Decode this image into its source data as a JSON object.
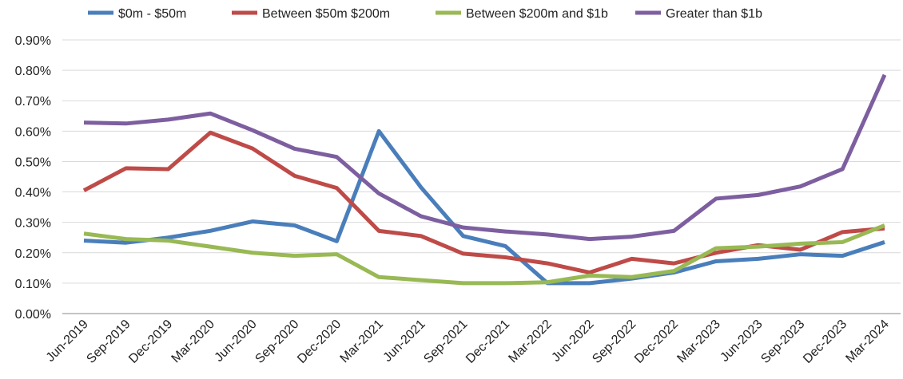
{
  "chart_data": {
    "type": "line",
    "categories": [
      "Jun-2019",
      "Sep-2019",
      "Dec-2019",
      "Mar-2020",
      "Jun-2020",
      "Sep-2020",
      "Dec-2020",
      "Mar-2021",
      "Jun-2021",
      "Sep-2021",
      "Dec-2021",
      "Mar-2022",
      "Jun-2022",
      "Sep-2022",
      "Dec-2022",
      "Mar-2023",
      "Jun-2023",
      "Sep-2023",
      "Dec-2023",
      "Mar-2024"
    ],
    "series": [
      {
        "name": "$0m - $50m",
        "color": "#4a7ebb",
        "values": [
          0.24,
          0.233,
          0.25,
          0.272,
          0.303,
          0.29,
          0.238,
          0.6,
          0.415,
          0.255,
          0.222,
          0.1,
          0.1,
          0.115,
          0.135,
          0.172,
          0.18,
          0.195,
          0.19,
          0.235
        ]
      },
      {
        "name": "Between $50m $200m",
        "color": "#be4b48",
        "values": [
          0.405,
          0.478,
          0.475,
          0.595,
          0.543,
          0.453,
          0.413,
          0.272,
          0.255,
          0.197,
          0.185,
          0.165,
          0.135,
          0.18,
          0.165,
          0.2,
          0.225,
          0.21,
          0.268,
          0.28
        ]
      },
      {
        "name": "Between $200m and $1b",
        "color": "#98b954",
        "values": [
          0.263,
          0.245,
          0.24,
          0.22,
          0.2,
          0.19,
          0.195,
          0.12,
          0.11,
          0.1,
          0.1,
          0.103,
          0.125,
          0.12,
          0.14,
          0.215,
          0.22,
          0.23,
          0.235,
          0.29
        ]
      },
      {
        "name": "Greater than $1b",
        "color": "#7d5fa0",
        "values": [
          0.628,
          0.625,
          0.638,
          0.658,
          0.603,
          0.542,
          0.515,
          0.395,
          0.32,
          0.283,
          0.27,
          0.26,
          0.245,
          0.253,
          0.272,
          0.378,
          0.39,
          0.418,
          0.475,
          0.785
        ]
      }
    ],
    "ylim": [
      0,
      0.9
    ],
    "yticks": [
      {
        "value": 0,
        "label": "0.00%"
      },
      {
        "value": 0.1,
        "label": "0.10%"
      },
      {
        "value": 0.2,
        "label": "0.20%"
      },
      {
        "value": 0.3,
        "label": "0.30%"
      },
      {
        "value": 0.4,
        "label": "0.40%"
      },
      {
        "value": 0.5,
        "label": "0.50%"
      },
      {
        "value": 0.6,
        "label": "0.60%"
      },
      {
        "value": 0.7,
        "label": "0.70%"
      },
      {
        "value": 0.8,
        "label": "0.80%"
      },
      {
        "value": 0.9,
        "label": "0.90%"
      }
    ],
    "grid": true,
    "legend": "top"
  }
}
